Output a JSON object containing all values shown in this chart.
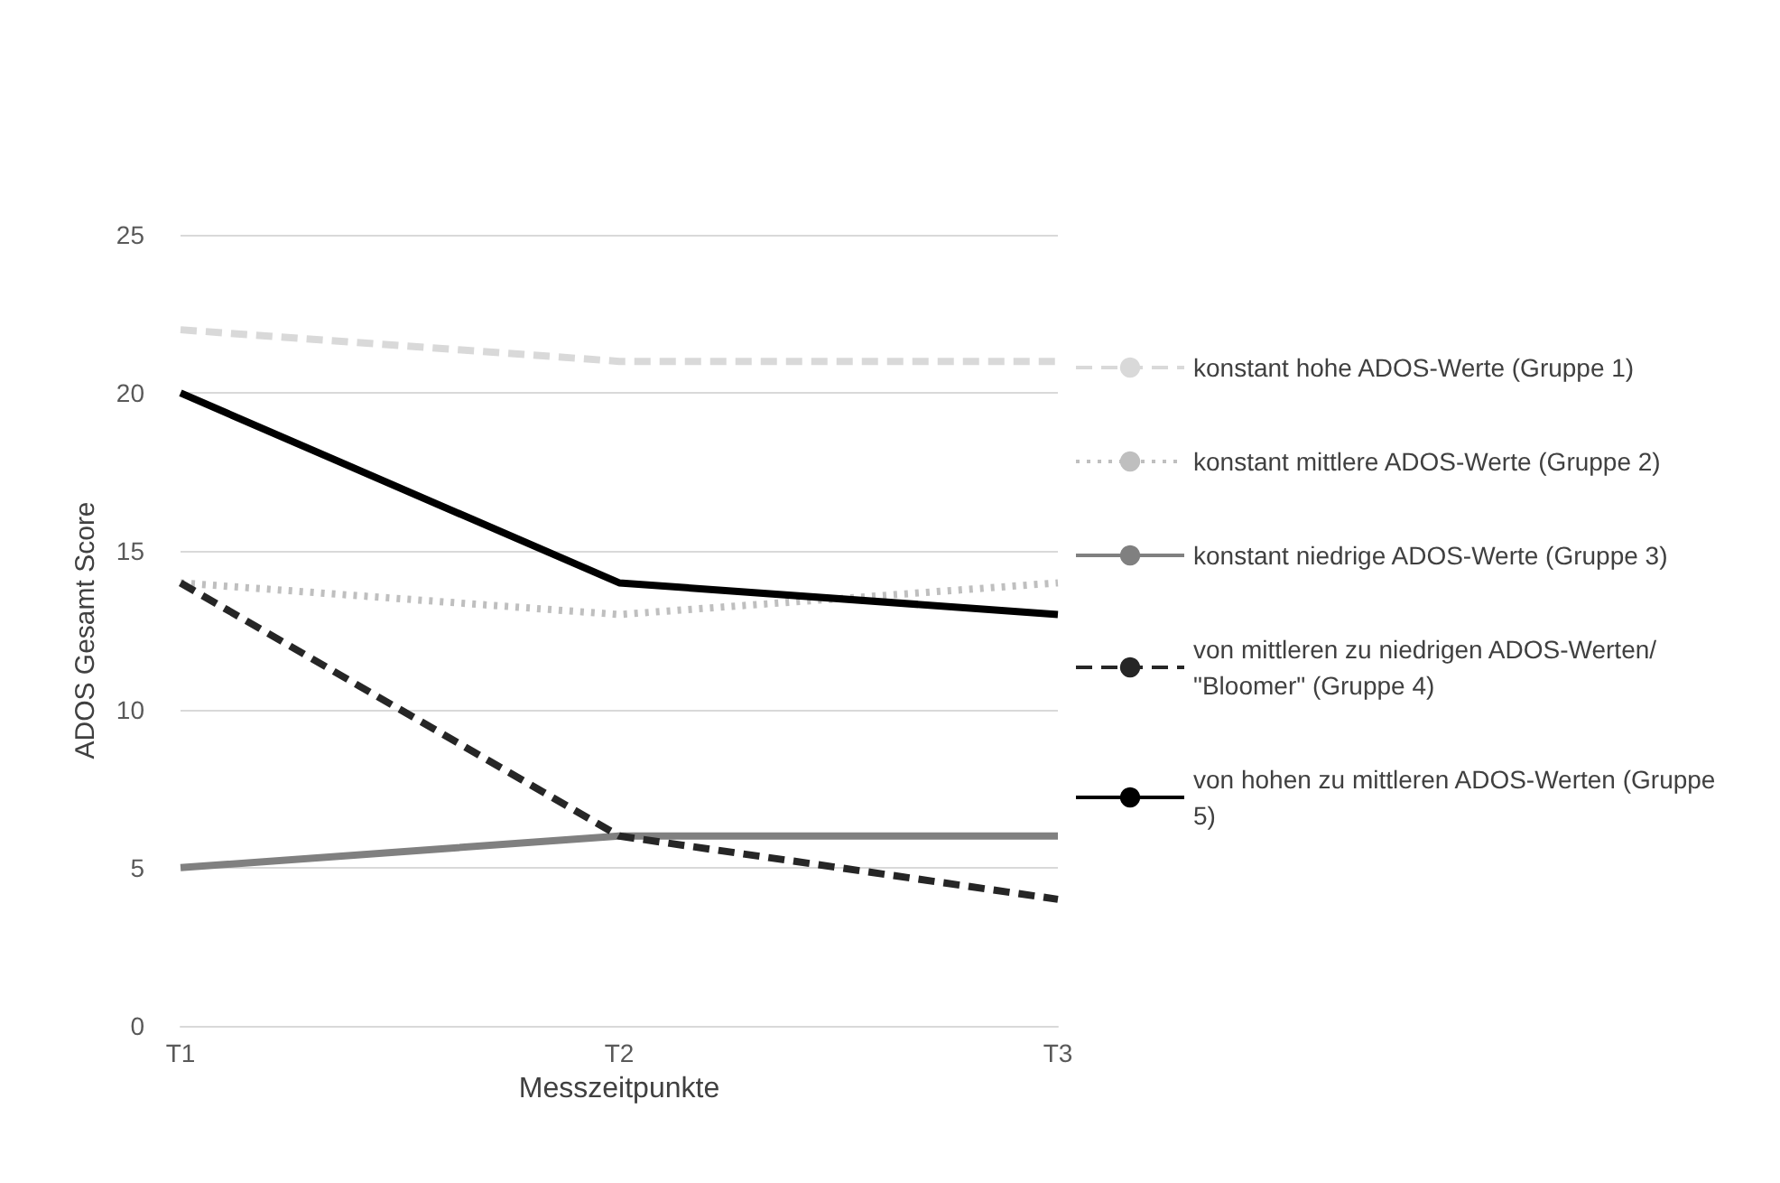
{
  "chart_data": {
    "type": "line",
    "xlabel": "Messzeitpunkte",
    "ylabel": "ADOS Gesamt Score",
    "categories": [
      "T1",
      "T2",
      "T3"
    ],
    "series": [
      {
        "name": "konstant hohe ADOS-Werte (Gruppe 1)",
        "color": "#d9d9d9",
        "line_style": "dashed",
        "values": [
          22,
          21,
          21
        ]
      },
      {
        "name": "konstant mittlere ADOS-Werte (Gruppe 2)",
        "color": "#bfbfbf",
        "line_style": "dotted",
        "values": [
          14,
          13,
          14
        ]
      },
      {
        "name": "konstant niedrige ADOS-Werte (Gruppe 3)",
        "color": "#808080",
        "line_style": "solid",
        "values": [
          5,
          6,
          6
        ]
      },
      {
        "name": "von mittleren zu niedrigen ADOS-Werten/\"Bloomer\" (Gruppe 4)",
        "color": "#262626",
        "line_style": "dashed",
        "values": [
          14,
          6,
          4
        ]
      },
      {
        "name": "von hohen zu mittleren ADOS-Werten (Gruppe 5)",
        "color": "#000000",
        "line_style": "solid",
        "values": [
          20,
          14,
          13
        ]
      }
    ],
    "ylim": [
      0,
      25
    ],
    "yticks": [
      0,
      5,
      10,
      15,
      20,
      25
    ],
    "grid": "y",
    "legend": "right",
    "marker": "none"
  }
}
